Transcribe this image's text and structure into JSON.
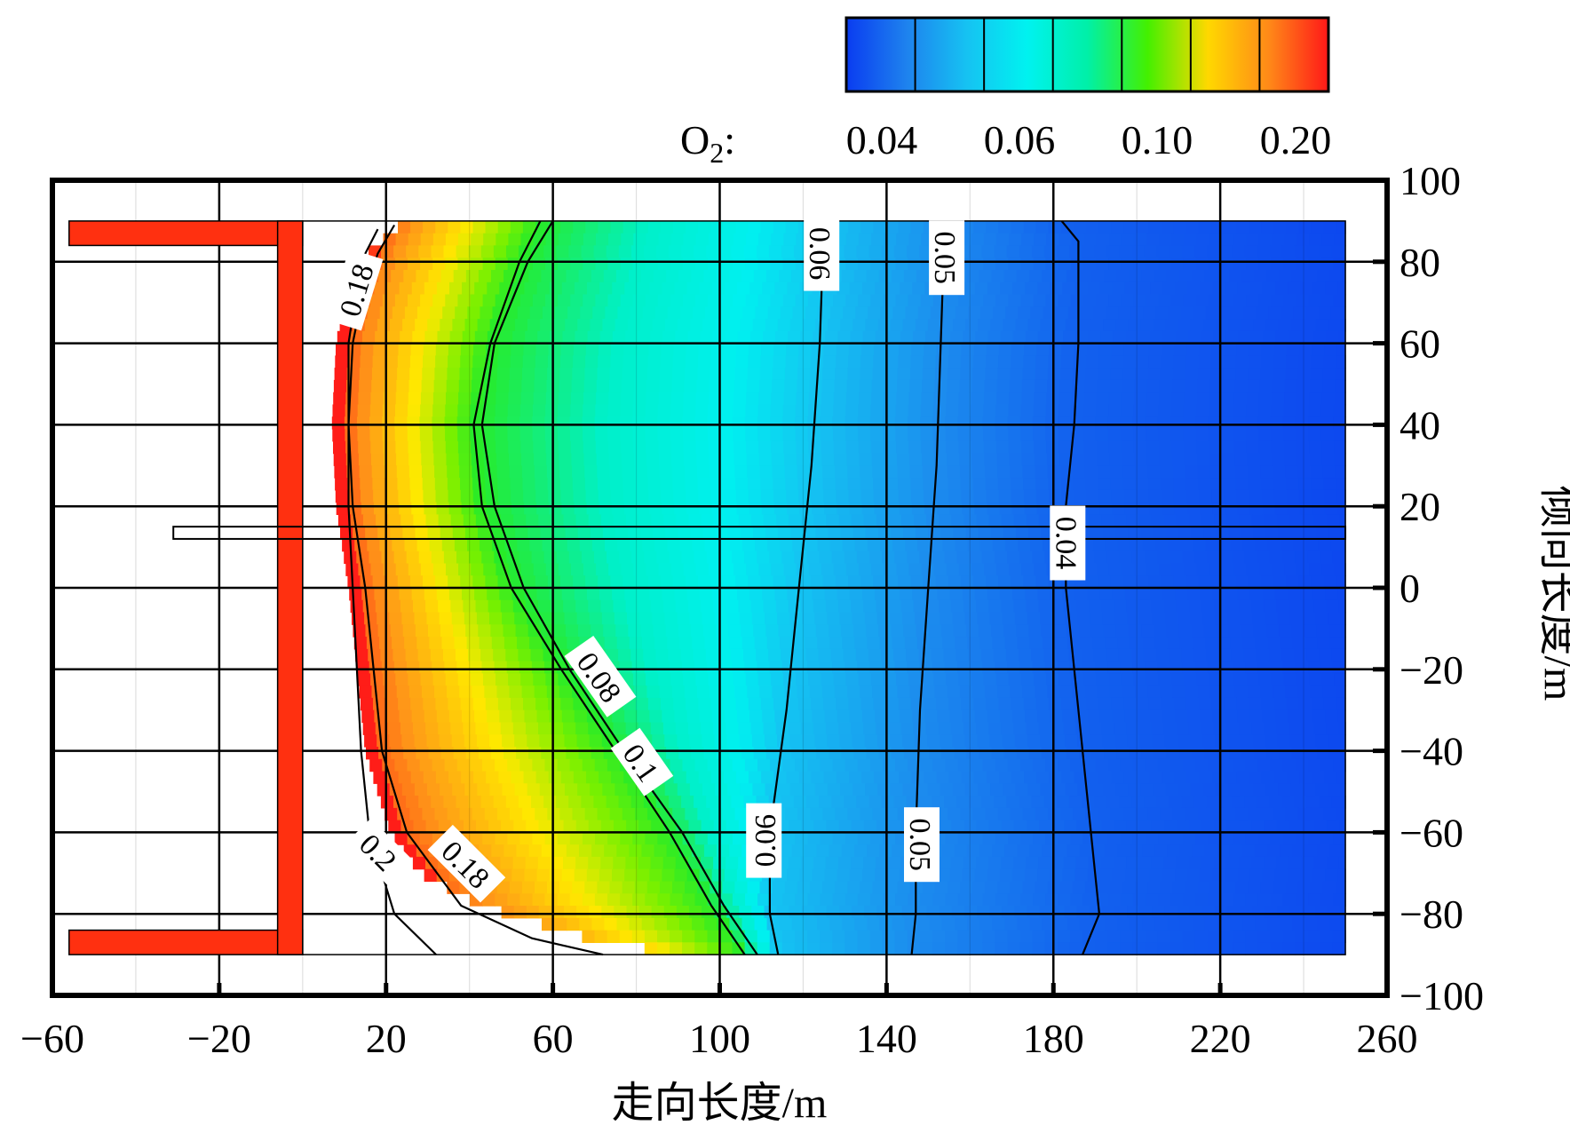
{
  "chart_data": {
    "type": "heatmap",
    "title": "",
    "xlabel": "走向长度/m",
    "ylabel": "倾向长度/m",
    "xlim": [
      -60,
      260
    ],
    "ylim": [
      -100,
      100
    ],
    "x_ticks": [
      -60,
      -20,
      20,
      60,
      100,
      140,
      180,
      220,
      260
    ],
    "x_tick_labels": [
      "−60",
      "−20",
      "20",
      "60",
      "100",
      "140",
      "180",
      "220",
      "260"
    ],
    "y_ticks": [
      100,
      80,
      60,
      40,
      20,
      0,
      -20,
      -40,
      -60,
      -80,
      -100
    ],
    "y_tick_labels": [
      "100",
      "80",
      "60",
      "40",
      "20",
      "0",
      "−20",
      "−40",
      "−60",
      "−80",
      "−100"
    ],
    "grid": true,
    "colorbar": {
      "title_main": "O",
      "title_sub": "2",
      "title_suffix": ":",
      "labels": [
        "0.04",
        "0.06",
        "0.10",
        "0.20"
      ],
      "colors": [
        "#0a3cf0",
        "#1e82ee",
        "#16c2f2",
        "#00f2f0",
        "#00f0a8",
        "#44f000",
        "#ffd800",
        "#ff8a18",
        "#ff1818"
      ]
    },
    "goaf_domain": {
      "x": [
        0,
        250
      ],
      "y": [
        -90,
        90
      ]
    },
    "contours": [
      {
        "level": 0.2,
        "label": "0.2",
        "points": [
          [
            18,
            88
          ],
          [
            14,
            80
          ],
          [
            11,
            60
          ],
          [
            11,
            40
          ],
          [
            11,
            20
          ],
          [
            12,
            0
          ],
          [
            13,
            -20
          ],
          [
            14,
            -40
          ],
          [
            16,
            -60
          ],
          [
            22,
            -80
          ],
          [
            32,
            -90
          ]
        ]
      },
      {
        "level": 0.18,
        "label": "0.18",
        "points": [
          [
            22,
            89
          ],
          [
            18,
            82
          ],
          [
            14,
            70
          ],
          [
            12,
            60
          ],
          [
            11,
            40
          ],
          [
            12,
            20
          ],
          [
            15,
            0
          ],
          [
            17,
            -20
          ],
          [
            19,
            -40
          ],
          [
            25,
            -60
          ],
          [
            38,
            -78
          ],
          [
            55,
            -86
          ],
          [
            72,
            -90
          ]
        ]
      },
      {
        "level": 0.1,
        "label": "0.1",
        "points": [
          [
            57,
            90
          ],
          [
            52,
            80
          ],
          [
            45,
            60
          ],
          [
            41,
            40
          ],
          [
            43,
            20
          ],
          [
            50,
            0
          ],
          [
            62,
            -20
          ],
          [
            75,
            -40
          ],
          [
            88,
            -60
          ],
          [
            98,
            -78
          ],
          [
            106,
            -90
          ]
        ]
      },
      {
        "level": 0.08,
        "label": "0.08",
        "points": [
          [
            60,
            90
          ],
          [
            54,
            80
          ],
          [
            46,
            60
          ],
          [
            43,
            40
          ],
          [
            46,
            20
          ],
          [
            53,
            0
          ],
          [
            64,
            -20
          ],
          [
            77,
            -40
          ],
          [
            91,
            -60
          ],
          [
            101,
            -78
          ],
          [
            109,
            -90
          ]
        ]
      },
      {
        "level": 0.06,
        "label": "0.06",
        "points": [
          [
            125,
            90
          ],
          [
            124,
            60
          ],
          [
            122,
            30
          ],
          [
            119,
            0
          ],
          [
            116,
            -30
          ],
          [
            112,
            -60
          ],
          [
            112,
            -80
          ],
          [
            114,
            -90
          ]
        ]
      },
      {
        "level": 0.05,
        "label": "0.05",
        "points": [
          [
            154,
            90
          ],
          [
            153,
            60
          ],
          [
            152,
            30
          ],
          [
            150,
            0
          ],
          [
            148,
            -30
          ],
          [
            147,
            -60
          ],
          [
            147,
            -80
          ],
          [
            146,
            -90
          ]
        ]
      },
      {
        "level": 0.04,
        "label": "0.04",
        "points": [
          [
            182,
            90
          ],
          [
            186,
            85
          ],
          [
            186,
            60
          ],
          [
            185,
            40
          ],
          [
            183,
            20
          ],
          [
            183,
            0
          ],
          [
            185,
            -20
          ],
          [
            188,
            -50
          ],
          [
            191,
            -80
          ],
          [
            187,
            -90
          ]
        ]
      }
    ],
    "contour_labels": [
      {
        "text": "0.18",
        "x": 13,
        "y": 73,
        "angle": -73
      },
      {
        "text": "0.06",
        "x": 124,
        "y": 82,
        "angle": 90
      },
      {
        "text": "0.05",
        "x": 154,
        "y": 81,
        "angle": 90
      },
      {
        "text": "0.04",
        "x": 183,
        "y": 11,
        "angle": 90
      },
      {
        "text": "0.08",
        "x": 71,
        "y": -22,
        "angle": 55
      },
      {
        "text": "0.1",
        "x": 81,
        "y": -43,
        "angle": 55
      },
      {
        "text": "0.06",
        "x": 111,
        "y": -62,
        "angle": -90
      },
      {
        "text": "0.05",
        "x": 148,
        "y": -63,
        "angle": 90
      },
      {
        "text": "0.2",
        "x": 18,
        "y": -65,
        "angle": 45
      },
      {
        "text": "0.18",
        "x": 39,
        "y": -68,
        "angle": 45
      }
    ]
  }
}
